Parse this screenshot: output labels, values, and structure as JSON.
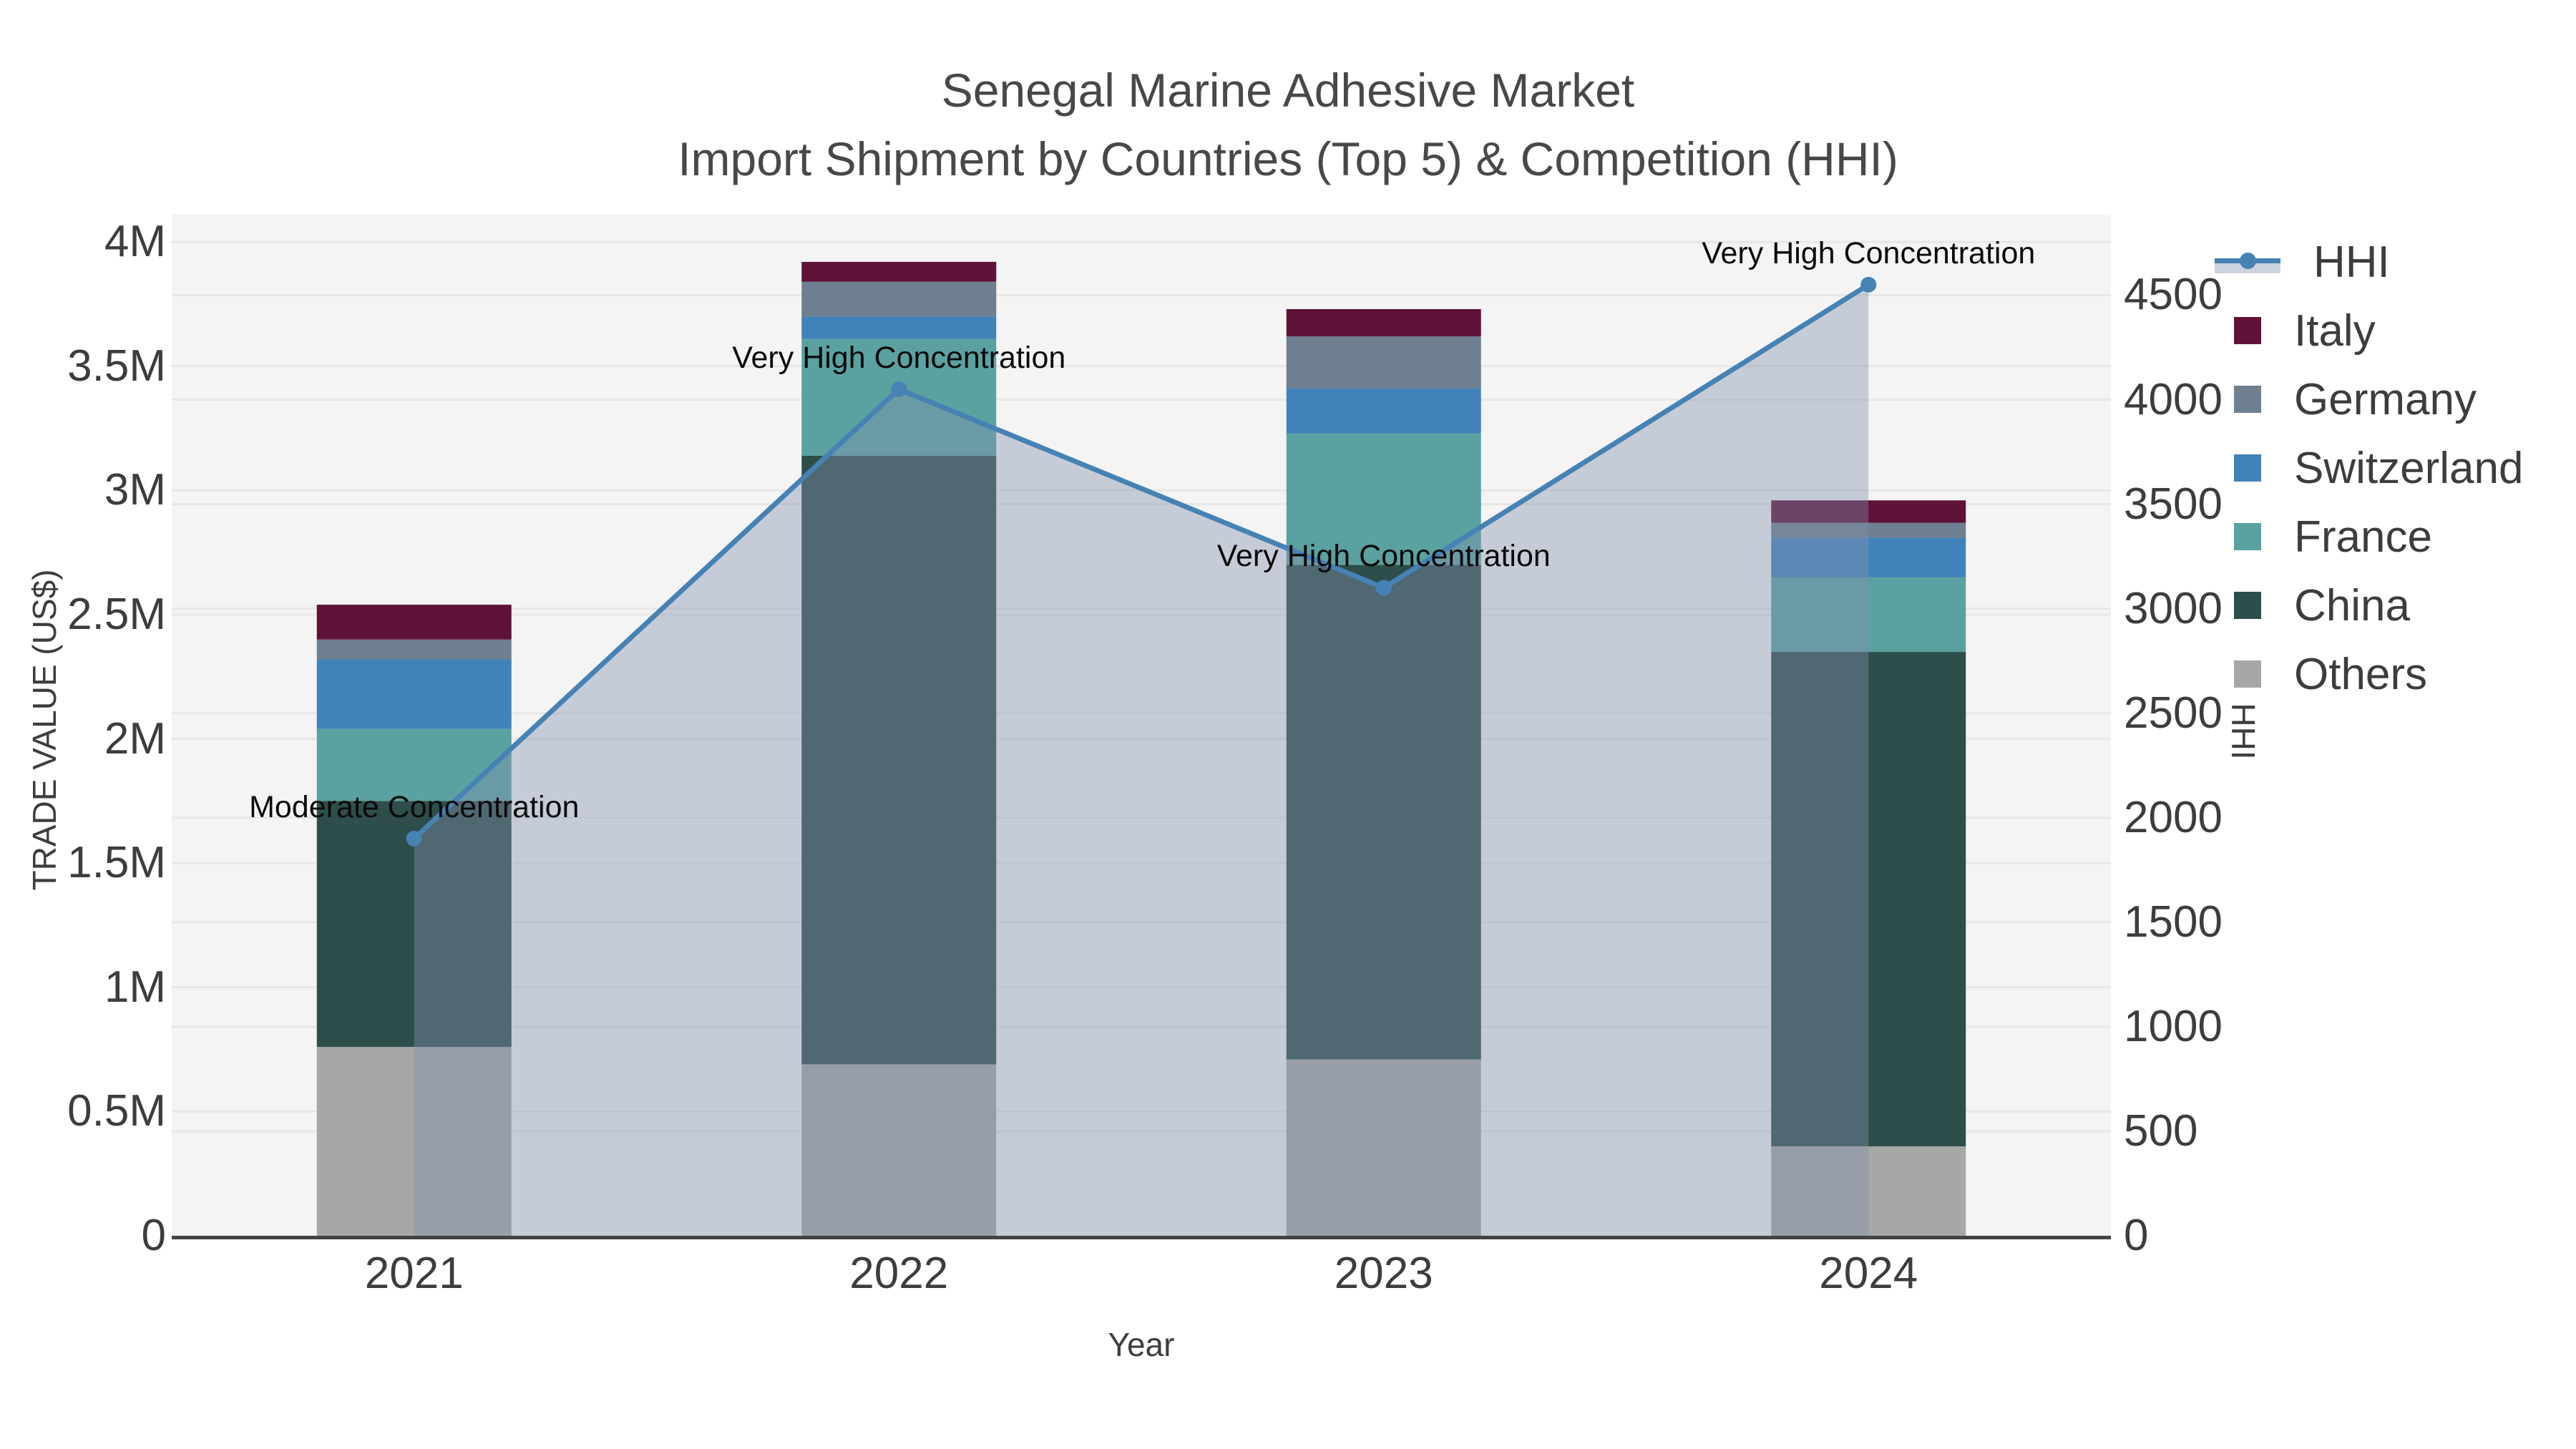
{
  "chart_data": {
    "type": "bar+line",
    "title": "Senegal Marine Adhesive Market",
    "subtitle": "Import Shipment by Countries (Top 5) & Competition (HHI)",
    "xlabel": "Year",
    "ylabel": "TRADE VALUE (US$)",
    "y2label": "HHI",
    "categories": [
      "2021",
      "2022",
      "2023",
      "2024"
    ],
    "value_unit": "million US$",
    "series": [
      {
        "name": "Others",
        "color": "#a7a7a5",
        "values": [
          0.76,
          0.69,
          0.71,
          0.36
        ]
      },
      {
        "name": "China",
        "color": "#2d4e4b",
        "values": [
          0.99,
          2.45,
          1.99,
          1.99
        ]
      },
      {
        "name": "France",
        "color": "#5ba1a1",
        "values": [
          0.29,
          0.47,
          0.53,
          0.3
        ]
      },
      {
        "name": "Switzerland",
        "color": "#4182ba",
        "values": [
          0.28,
          0.09,
          0.18,
          0.16
        ]
      },
      {
        "name": "Germany",
        "color": "#6e7f90",
        "values": [
          0.08,
          0.14,
          0.21,
          0.06
        ]
      },
      {
        "name": "Italy",
        "color": "#5e1237",
        "values": [
          0.14,
          0.08,
          0.11,
          0.09
        ]
      }
    ],
    "bar_totals": [
      2.54,
      3.92,
      3.73,
      2.96
    ],
    "hhi": {
      "name": "HHI",
      "line_color": "#4682b4",
      "area_fill": "rgba(130,146,172,0.40)",
      "values": [
        1900,
        4050,
        3100,
        4550
      ],
      "point_labels": [
        "Moderate Concentration",
        "Very High Concentration",
        "Very High Concentration",
        "Very High Concentration"
      ]
    },
    "y_axis": {
      "range": [
        0,
        4.11
      ],
      "ticks": [
        0,
        0.5,
        1,
        1.5,
        2,
        2.5,
        3,
        3.5,
        4
      ],
      "tick_labels": [
        "0",
        "0.5M",
        "1M",
        "1.5M",
        "2M",
        "2.5M",
        "3M",
        "3.5M",
        "4M"
      ]
    },
    "y2_axis": {
      "range": [
        0,
        4885
      ],
      "ticks": [
        0,
        500,
        1000,
        1500,
        2000,
        2500,
        3000,
        3500,
        4000,
        4500
      ],
      "tick_labels": [
        "0",
        "500",
        "1000",
        "1500",
        "2000",
        "2500",
        "3000",
        "3500",
        "4000",
        "4500"
      ]
    },
    "legend_order": [
      "HHI",
      "Italy",
      "Germany",
      "Switzerland",
      "France",
      "China",
      "Others"
    ],
    "style": {
      "plot_bg": "#f4f4f4",
      "gridline": "#e7e7e7",
      "axis_line": "#424242",
      "legend_position": "right"
    }
  }
}
